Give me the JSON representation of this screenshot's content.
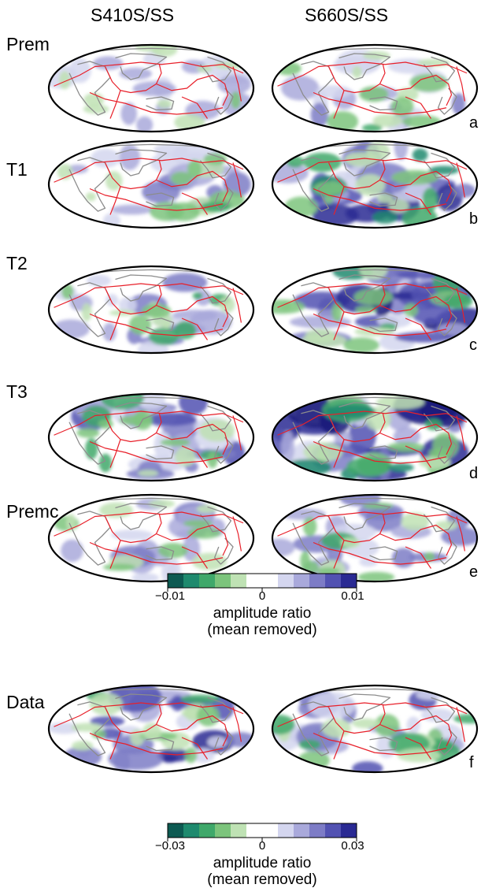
{
  "columns": [
    "S410S/SS",
    "S660S/SS"
  ],
  "rows": [
    {
      "label": "Prem",
      "panel": "a"
    },
    {
      "label": "T1",
      "panel": "b"
    },
    {
      "label": "T2",
      "panel": "c"
    },
    {
      "label": "T3",
      "panel": "d"
    },
    {
      "label": "Premc",
      "panel": "e"
    },
    {
      "label": "Data",
      "panel": "f"
    }
  ],
  "colorbars": [
    {
      "ticks": [
        "−0.01",
        "0",
        "0.01"
      ],
      "title_line1": "amplitude ratio",
      "title_line2": "(mean removed)"
    },
    {
      "ticks": [
        "−0.03",
        "0",
        "0.03"
      ],
      "title_line1": "amplitude ratio",
      "title_line2": "(mean removed)"
    }
  ],
  "colors": {
    "colorbar": [
      "#0d5a52",
      "#1e8a6e",
      "#3fa86a",
      "#7cc47c",
      "#bfe2b4",
      "#ffffff",
      "#ffffff",
      "#d4d6ef",
      "#a9a9db",
      "#7d7cc6",
      "#5252b2",
      "#2a2a93"
    ],
    "plate_boundaries": "#e8202a",
    "coastlines": "#8c8c8c",
    "map_outline": "#000000"
  }
}
